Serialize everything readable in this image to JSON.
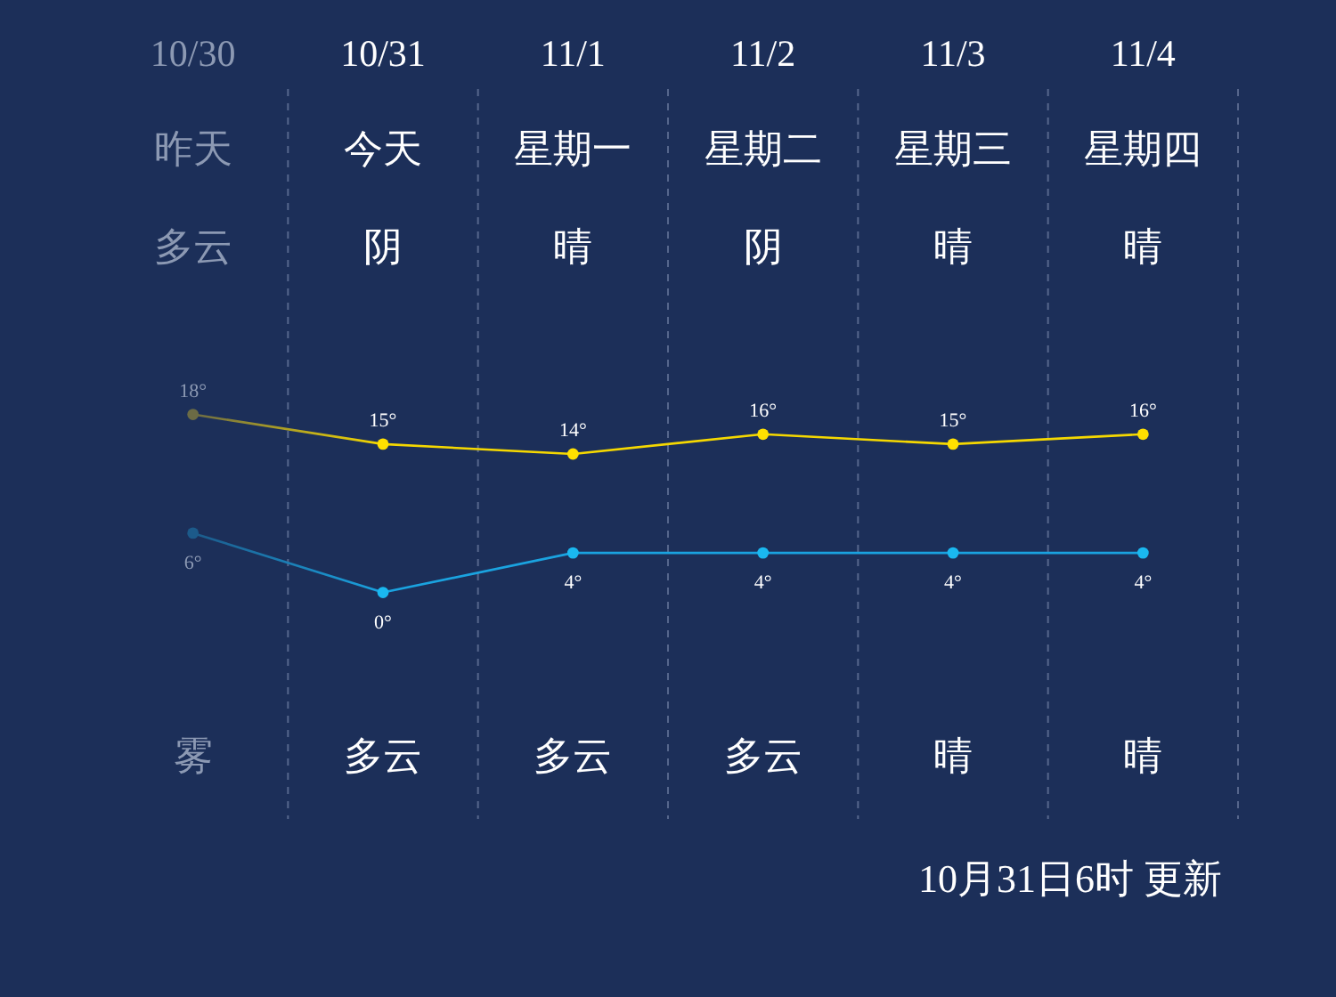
{
  "chart_data": {
    "type": "line",
    "categories": [
      "10/30",
      "10/31",
      "11/1",
      "11/2",
      "11/3",
      "11/4"
    ],
    "series": [
      {
        "color": "#f5d800",
        "colors": [
          "#6b6b45",
          "#ffe000",
          "#ffe000",
          "#ffe000",
          "#ffe000",
          "#ffe000"
        ],
        "values": [
          18,
          15,
          14,
          16,
          15,
          16
        ],
        "value_labels": [
          "18°",
          "15°",
          "14°",
          "16°",
          "15°",
          "16°"
        ]
      },
      {
        "color": "#1aa3e0",
        "colors": [
          "#1c5a8a",
          "#1ab8f0",
          "#1ab8f0",
          "#1ab8f0",
          "#1ab8f0",
          "#1ab8f0"
        ],
        "values": [
          6,
          0,
          4,
          4,
          4,
          4
        ],
        "value_labels": [
          "6°",
          "0°",
          "4°",
          "4°",
          "4°",
          "4°"
        ]
      }
    ],
    "annotations": [
      "昨天",
      "今天",
      "星期一",
      "星期二",
      "星期三",
      "星期四",
      "多云",
      "阴",
      "晴",
      "阴",
      "晴",
      "晴",
      "雾",
      "多云",
      "多云",
      "多云",
      "晴",
      "晴",
      "10月31日6时 更新"
    ],
    "grid": "x",
    "marker": "circle",
    "line_style": "solid"
  }
}
